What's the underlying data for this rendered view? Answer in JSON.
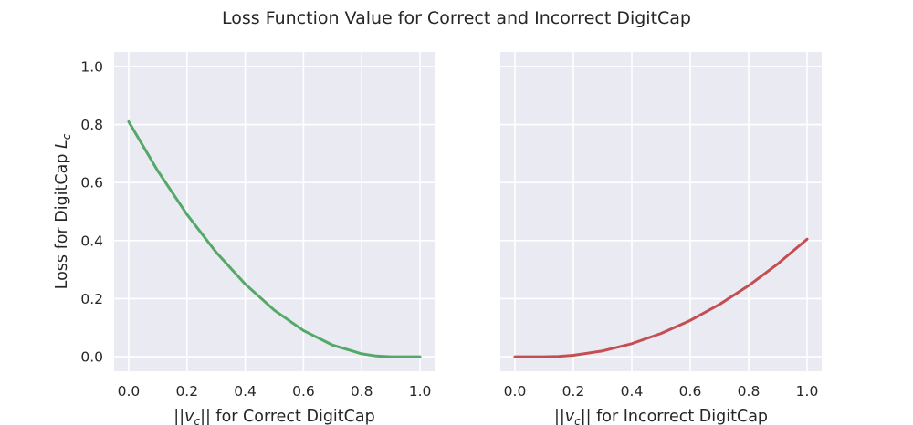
{
  "figure": {
    "title": "Loss Function Value for Correct and Incorrect DigitCap"
  },
  "chart_data": [
    {
      "type": "line",
      "name": "correct",
      "xlabel": {
        "pre": "||",
        "var": "v",
        "sub": "c",
        "post": "|| for Correct DigitCap"
      },
      "ylabel": {
        "pre": "Loss for DigitCap ",
        "var": "L",
        "sub": "c"
      },
      "xlim": [
        -0.05,
        1.05
      ],
      "ylim": [
        -0.05,
        1.05
      ],
      "xticks": [
        0.0,
        0.2,
        0.4,
        0.6,
        0.8,
        1.0
      ],
      "yticks": [
        0.0,
        0.2,
        0.4,
        0.6,
        0.8,
        1.0
      ],
      "xtick_labels": [
        "0.0",
        "0.2",
        "0.4",
        "0.6",
        "0.8",
        "1.0"
      ],
      "ytick_labels": [
        "0.0",
        "0.2",
        "0.4",
        "0.6",
        "0.8",
        "1.0"
      ],
      "color": "#55a868",
      "grid": true,
      "background": "#eaeaf2",
      "series": [
        {
          "x": [
            0.0,
            0.1,
            0.2,
            0.3,
            0.4,
            0.5,
            0.6,
            0.7,
            0.8,
            0.85,
            0.9,
            0.95,
            1.0
          ],
          "y": [
            0.81,
            0.64,
            0.49,
            0.36,
            0.25,
            0.16,
            0.09,
            0.04,
            0.01,
            0.0025,
            0.0,
            0.0,
            0.0
          ]
        }
      ]
    },
    {
      "type": "line",
      "name": "incorrect",
      "xlabel": {
        "pre": "||",
        "var": "v",
        "sub": "c",
        "post": "|| for Incorrect DigitCap"
      },
      "ylabel": null,
      "xlim": [
        -0.05,
        1.05
      ],
      "ylim": [
        -0.05,
        1.05
      ],
      "xticks": [
        0.0,
        0.2,
        0.4,
        0.6,
        0.8,
        1.0
      ],
      "yticks": [
        0.0,
        0.2,
        0.4,
        0.6,
        0.8,
        1.0
      ],
      "xtick_labels": [
        "0.0",
        "0.2",
        "0.4",
        "0.6",
        "0.8",
        "1.0"
      ],
      "ytick_labels": [],
      "color": "#c44e52",
      "grid": true,
      "background": "#eaeaf2",
      "series": [
        {
          "x": [
            0.0,
            0.05,
            0.1,
            0.15,
            0.2,
            0.3,
            0.4,
            0.5,
            0.6,
            0.7,
            0.8,
            0.9,
            1.0
          ],
          "y": [
            0.0,
            0.0,
            0.0,
            0.00125,
            0.005,
            0.02,
            0.045,
            0.08,
            0.125,
            0.18,
            0.245,
            0.32,
            0.405
          ]
        }
      ]
    }
  ]
}
